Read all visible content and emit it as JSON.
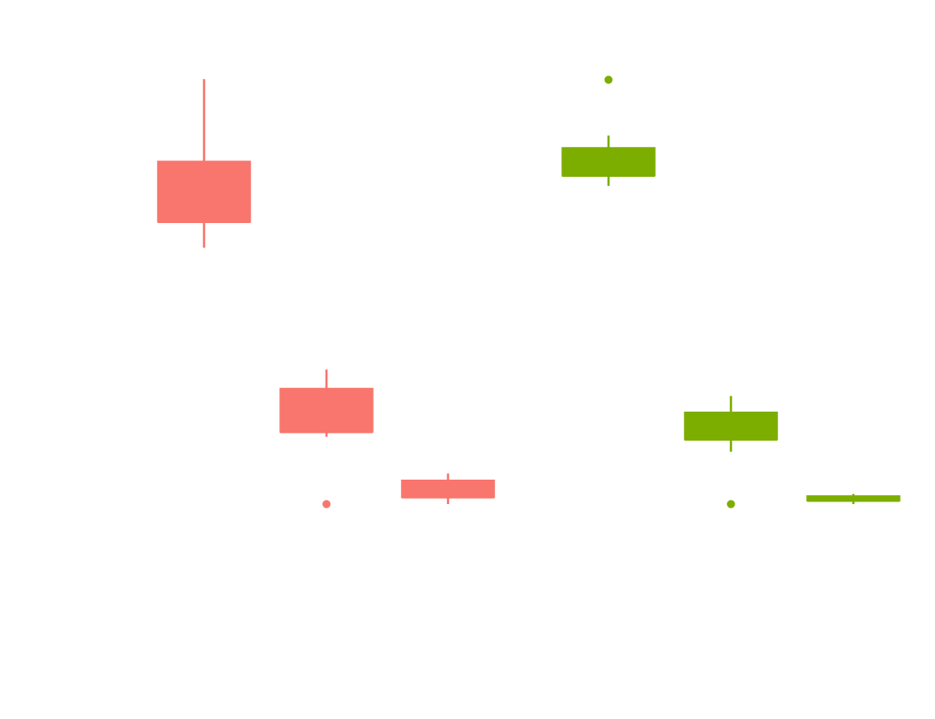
{
  "chart_data": {
    "type": "box",
    "title": "",
    "xlabel": "",
    "ylabel": "",
    "ylim": [
      0,
      100
    ],
    "grid": false,
    "legend": "none",
    "colors": {
      "group_a": "#F8766D",
      "group_b": "#7CAE00"
    },
    "series": [
      {
        "color_key": "group_a",
        "boxes": [
          {
            "whisker_low": 66.5,
            "q1": 70.3,
            "median": 70.3,
            "q3": 79.2,
            "whisker_high": 91.3,
            "outliers": []
          },
          {
            "whisker_low": 38.7,
            "q1": 39.4,
            "median": 39.4,
            "q3": 45.8,
            "whisker_high": 48.6,
            "outliers": [
              28.8
            ]
          },
          {
            "whisker_low": 28.8,
            "q1": 29.8,
            "median": 29.8,
            "q3": 32.3,
            "whisker_high": 33.3,
            "outliers": []
          }
        ]
      },
      {
        "color_key": "group_b",
        "boxes": [
          {
            "whisker_low": 75.6,
            "q1": 77.1,
            "median": 77.1,
            "q3": 81.2,
            "whisker_high": 83.0,
            "outliers": [
              91.2
            ]
          },
          {
            "whisker_low": 36.5,
            "q1": 38.3,
            "median": 38.3,
            "q3": 42.3,
            "whisker_high": 44.7,
            "outliers": [
              28.8
            ]
          },
          {
            "whisker_low": 28.8,
            "q1": 29.3,
            "median": 29.3,
            "q3": 30.0,
            "whisker_high": 30.3,
            "outliers": []
          }
        ]
      }
    ]
  }
}
